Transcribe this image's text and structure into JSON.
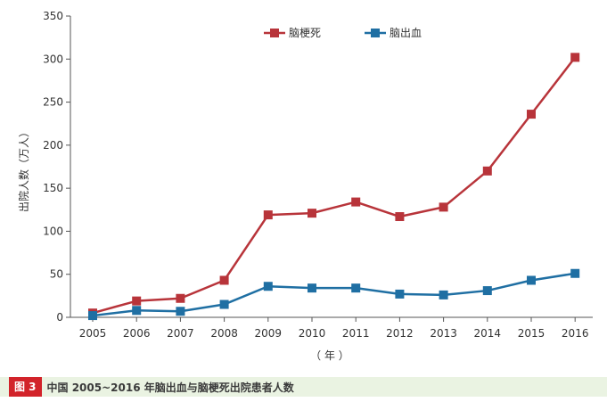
{
  "chart_data": {
    "type": "line",
    "title": "",
    "xlabel": "（ 年 ）",
    "ylabel": "出院人数（万人）",
    "ylim": [
      0,
      350
    ],
    "yticks": [
      0,
      50,
      100,
      150,
      200,
      250,
      300,
      350
    ],
    "x": [
      "2005",
      "2006",
      "2007",
      "2008",
      "2009",
      "2010",
      "2011",
      "2012",
      "2013",
      "2014",
      "2015",
      "2016"
    ],
    "legend_position": "top-center",
    "grid": false,
    "series": [
      {
        "name": "脑梗死",
        "color": "#b8343a",
        "values": [
          5,
          19,
          22,
          43,
          119,
          121,
          134,
          117,
          128,
          170,
          236,
          302
        ]
      },
      {
        "name": "脑出血",
        "color": "#1f6fa3",
        "values": [
          2,
          8,
          7,
          15,
          36,
          34,
          34,
          27,
          26,
          31,
          43,
          51
        ]
      }
    ]
  },
  "caption": {
    "tag": "图 3",
    "text": "中国 2005~2016 年脑出血与脑梗死出院患者人数"
  }
}
